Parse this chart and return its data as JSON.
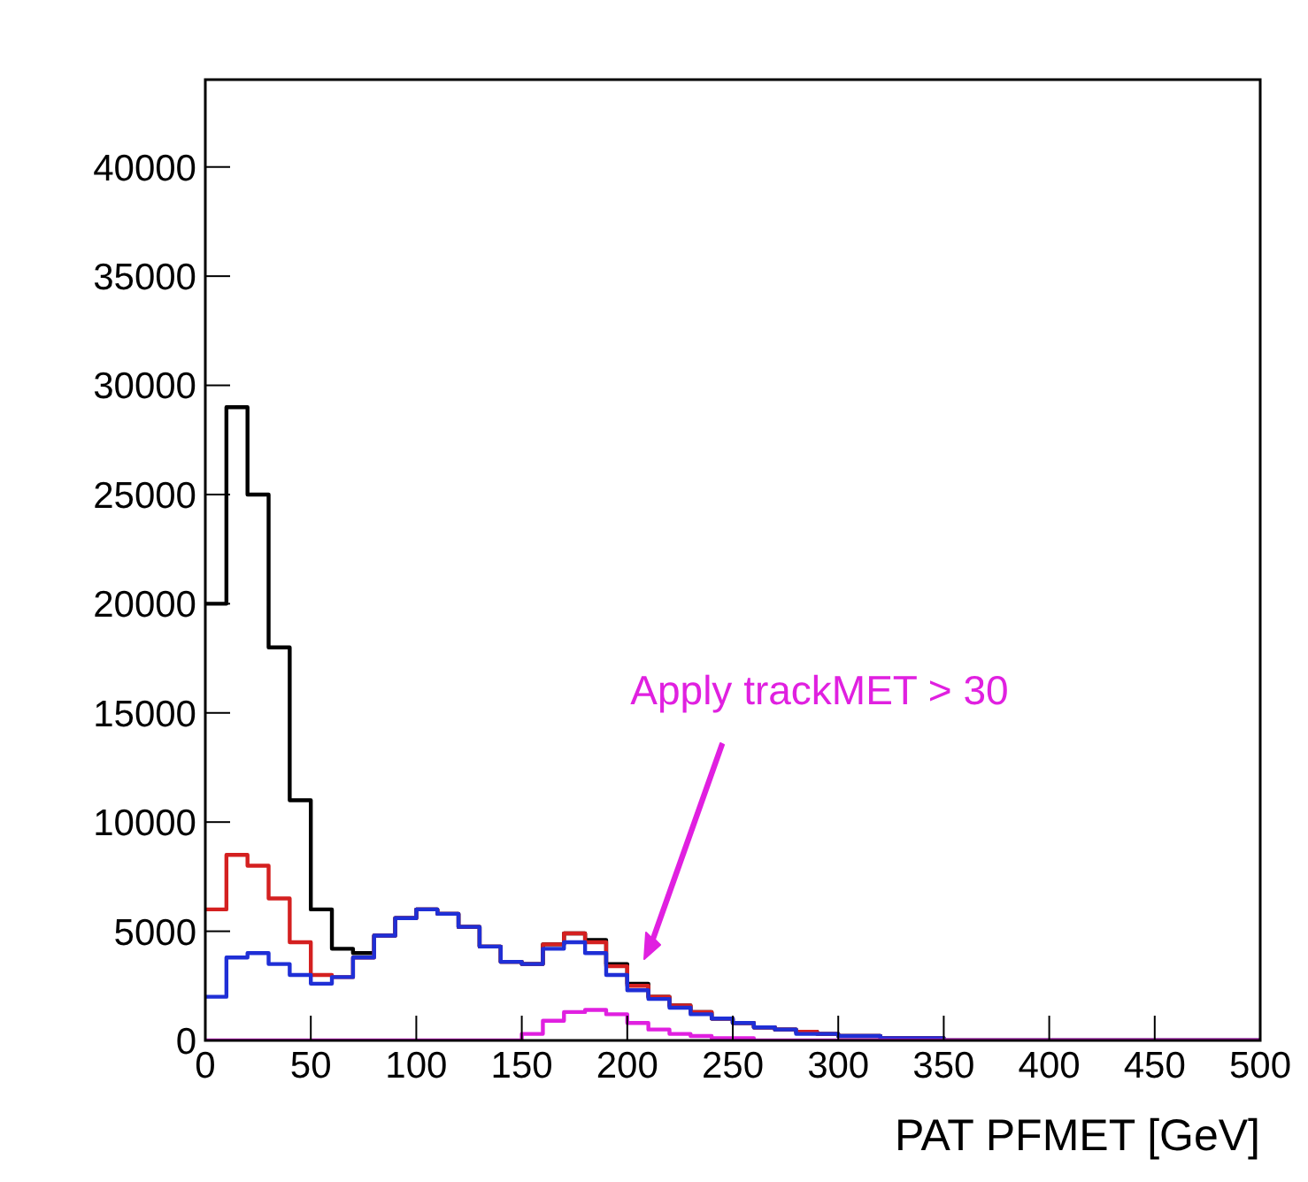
{
  "chart_data": {
    "type": "histogram",
    "xlabel": "PAT PFMET [GeV]",
    "bins": [
      0,
      10,
      20,
      30,
      40,
      50,
      60,
      70,
      80,
      90,
      100,
      110,
      120,
      130,
      140,
      150,
      160,
      170,
      180,
      190,
      200,
      210,
      220,
      230,
      240,
      250,
      260,
      270,
      280,
      290,
      300,
      310,
      320,
      330,
      340,
      350,
      360,
      370,
      380,
      390,
      400,
      410,
      420,
      430,
      440,
      450,
      460,
      470,
      480,
      490,
      500
    ],
    "series": [
      {
        "color": "#000000",
        "values": [
          20000,
          29000,
          25000,
          18000,
          11000,
          6000,
          4200,
          4000,
          4800,
          5600,
          6000,
          5800,
          5200,
          4300,
          3600,
          3500,
          4400,
          4900,
          4600,
          3500,
          2600,
          2000,
          1600,
          1300,
          1000,
          800,
          600,
          500,
          400,
          300,
          200,
          200,
          100,
          100,
          100,
          0,
          0,
          0,
          0,
          0,
          0,
          0,
          0,
          0,
          0,
          0,
          0,
          0,
          0,
          0
        ]
      },
      {
        "color": "#d42020",
        "values": [
          6000,
          8500,
          8000,
          6500,
          4500,
          3000,
          2900,
          3800,
          4800,
          5600,
          6000,
          5800,
          5200,
          4300,
          3600,
          3500,
          4400,
          4900,
          4500,
          3400,
          2500,
          2000,
          1600,
          1300,
          1000,
          800,
          600,
          500,
          400,
          300,
          200,
          200,
          100,
          100,
          100,
          0,
          0,
          0,
          0,
          0,
          0,
          0,
          0,
          0,
          0,
          0,
          0,
          0,
          0,
          0
        ]
      },
      {
        "color": "#1f2fd6",
        "values": [
          2000,
          3800,
          4000,
          3500,
          3000,
          2600,
          2900,
          3800,
          4800,
          5600,
          6000,
          5800,
          5200,
          4300,
          3600,
          3500,
          4200,
          4500,
          4000,
          3000,
          2300,
          1900,
          1500,
          1200,
          1000,
          800,
          600,
          500,
          300,
          300,
          200,
          200,
          100,
          100,
          100,
          0,
          0,
          0,
          0,
          0,
          0,
          0,
          0,
          0,
          0,
          0,
          0,
          0,
          0,
          0
        ]
      },
      {
        "color": "#e020e0",
        "values": [
          0,
          0,
          0,
          0,
          0,
          0,
          0,
          0,
          0,
          0,
          0,
          0,
          0,
          0,
          0,
          300,
          900,
          1300,
          1400,
          1200,
          800,
          500,
          300,
          200,
          100,
          100,
          0,
          0,
          0,
          0,
          0,
          0,
          0,
          0,
          0,
          0,
          0,
          0,
          0,
          0,
          0,
          0,
          0,
          0,
          0,
          0,
          0,
          0,
          0,
          0
        ]
      }
    ],
    "xlim": [
      0,
      500
    ],
    "xticks": [
      0,
      50,
      100,
      150,
      200,
      250,
      300,
      350,
      400,
      450,
      500
    ],
    "ylim": [
      0,
      44000
    ],
    "yticks": [
      0,
      5000,
      10000,
      15000,
      20000,
      25000,
      30000,
      35000,
      40000
    ],
    "annotations": [
      "Apply trackMET > 30"
    ]
  }
}
